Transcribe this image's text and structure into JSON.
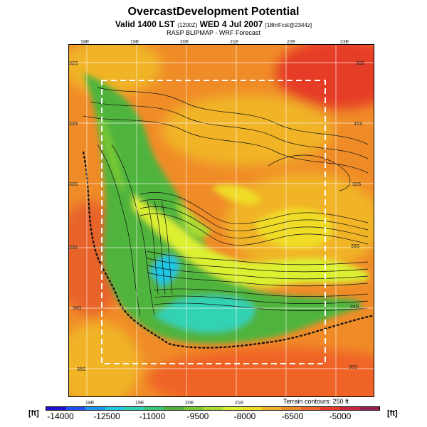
{
  "header": {
    "title": "OvercastDevelopment Potential",
    "valid_line_main": "Valid 1400 LST",
    "valid_line_code": "(1200Z)",
    "valid_line_date": "WED 4 Jul 2007",
    "valid_line_fcst": "[18hrFcst@2344z]",
    "subtitle": "RASP BLIPMAP - WRF Forecast"
  },
  "map": {
    "lon_labels_top": [
      "18E",
      "19E",
      "20E",
      "21E",
      "22E",
      "23E"
    ],
    "lon_labels_bottom": [
      "18E",
      "19E",
      "20E",
      "21E"
    ],
    "lat_labels_left": [
      "32S",
      "33S",
      "33S",
      "33S",
      "34S",
      "35S"
    ],
    "lat_labels_right": [
      "30S",
      "31S",
      "32S",
      "33S",
      "34S",
      "35S"
    ],
    "terrain_note": "Terrain contours: 250 ft"
  },
  "colorbar": {
    "unit_left": "[ft]",
    "unit_right": "[ft]",
    "tick_labels": [
      "-14000",
      "-12500",
      "-11000",
      "-9500",
      "-8000",
      "-6500",
      "-5000"
    ],
    "colors": [
      "#1e0fd0",
      "#1e50f0",
      "#1e96f0",
      "#1ec8e6",
      "#32d2b4",
      "#3cc878",
      "#50b43c",
      "#78c832",
      "#aadc32",
      "#dcf032",
      "#f0dc28",
      "#f0b428",
      "#f08c28",
      "#f06428",
      "#e63c28",
      "#c8283c",
      "#961e50"
    ]
  }
}
